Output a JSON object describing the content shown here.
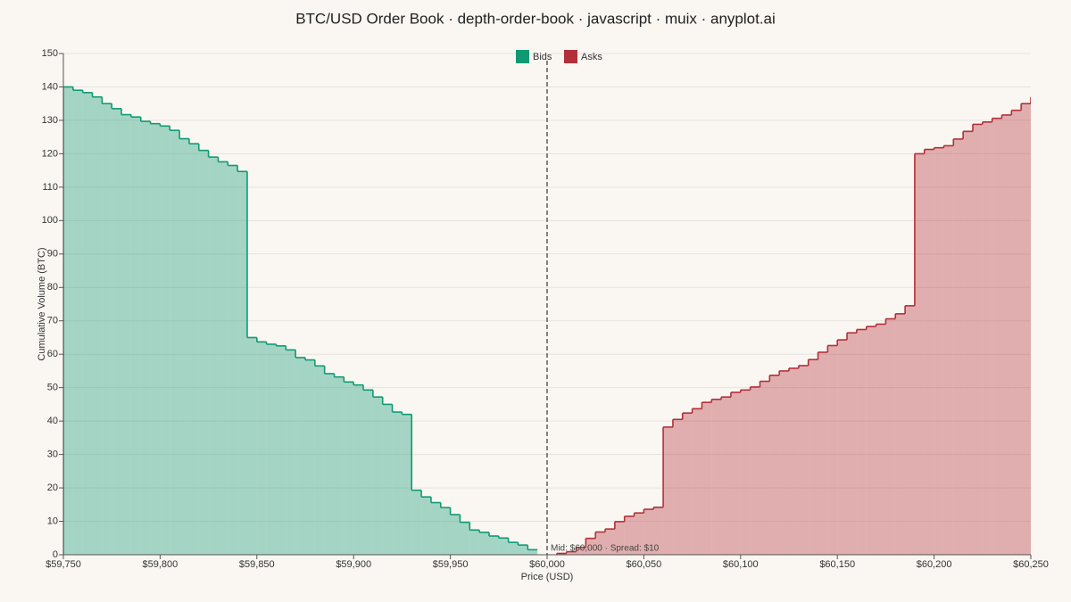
{
  "chart_data": {
    "type": "depth",
    "title": "BTC/USD Order Book · depth-order-book · javascript · muix · anyplot.ai",
    "x_label": "Price (USD)",
    "y_label": "Cumulative Volume (BTC)",
    "annotation": "Mid: $60,000 · Spread: $10",
    "mid_price": 60000,
    "xlim": [
      59750,
      60250
    ],
    "ylim": [
      0,
      150
    ],
    "xticks": [
      {
        "value": 59750,
        "label": "$59,750"
      },
      {
        "value": 59800,
        "label": "$59,800"
      },
      {
        "value": 59850,
        "label": "$59,850"
      },
      {
        "value": 59900,
        "label": "$59,900"
      },
      {
        "value": 59950,
        "label": "$59,950"
      },
      {
        "value": 60000,
        "label": "$60,000"
      },
      {
        "value": 60050,
        "label": "$60,050"
      },
      {
        "value": 60100,
        "label": "$60,100"
      },
      {
        "value": 60150,
        "label": "$60,150"
      },
      {
        "value": 60200,
        "label": "$60,200"
      },
      {
        "value": 60250,
        "label": "$60,250"
      }
    ],
    "yticks": [
      0,
      10,
      20,
      30,
      40,
      50,
      60,
      70,
      80,
      90,
      100,
      110,
      120,
      130,
      140,
      150
    ],
    "grid": true,
    "legend": "top",
    "series": [
      {
        "name": "Bids",
        "color": "#0f9a74",
        "x": [
          59750,
          59755,
          59760,
          59765,
          59770,
          59775,
          59780,
          59785,
          59790,
          59795,
          59800,
          59805,
          59810,
          59815,
          59820,
          59825,
          59830,
          59835,
          59840,
          59845,
          59850,
          59855,
          59860,
          59865,
          59870,
          59875,
          59880,
          59885,
          59890,
          59895,
          59900,
          59905,
          59910,
          59915,
          59920,
          59925,
          59930,
          59935,
          59940,
          59945,
          59950,
          59955,
          59960,
          59965,
          59970,
          59975,
          59980,
          59985,
          59990
        ],
        "values": [
          140,
          139,
          138.3,
          137,
          135,
          133.5,
          131.7,
          131,
          129.7,
          129,
          128.3,
          127,
          124.5,
          123,
          121,
          119,
          117.6,
          116.5,
          114.7,
          65,
          63.7,
          63,
          62.5,
          61.3,
          59,
          58.3,
          56.5,
          54.2,
          53.2,
          51.7,
          50.8,
          49.3,
          47.2,
          45,
          42.7,
          42,
          19.3,
          17.3,
          15.6,
          14.1,
          12,
          9.7,
          7.4,
          6.7,
          5.6,
          5,
          3.7,
          2.9,
          1.5
        ]
      },
      {
        "name": "Asks",
        "color": "#b3303a",
        "x": [
          60005,
          60010,
          60015,
          60020,
          60025,
          60030,
          60035,
          60040,
          60045,
          60050,
          60055,
          60060,
          60065,
          60070,
          60075,
          60080,
          60085,
          60090,
          60095,
          60100,
          60105,
          60110,
          60115,
          60120,
          60125,
          60130,
          60135,
          60140,
          60145,
          60150,
          60155,
          60160,
          60165,
          60170,
          60175,
          60180,
          60185,
          60190,
          60195,
          60200,
          60205,
          60210,
          60215,
          60220,
          60225,
          60230,
          60235,
          60240,
          60245,
          60250
        ],
        "values": [
          0.4,
          0.9,
          2.2,
          4.9,
          6.8,
          7.7,
          9.9,
          11.5,
          12.5,
          13.6,
          14.2,
          38.2,
          40.5,
          42.4,
          43.7,
          45.6,
          46.5,
          47.2,
          48.6,
          49.3,
          50.2,
          51.9,
          53.7,
          55,
          55.8,
          56.6,
          58.4,
          60.6,
          62.6,
          64.3,
          66.4,
          67.4,
          68.3,
          69,
          70.6,
          72.1,
          74.5,
          120,
          121.3,
          121.8,
          122.4,
          124.4,
          126.7,
          128.8,
          129.5,
          130.6,
          131.6,
          133,
          135,
          137
        ]
      }
    ]
  }
}
